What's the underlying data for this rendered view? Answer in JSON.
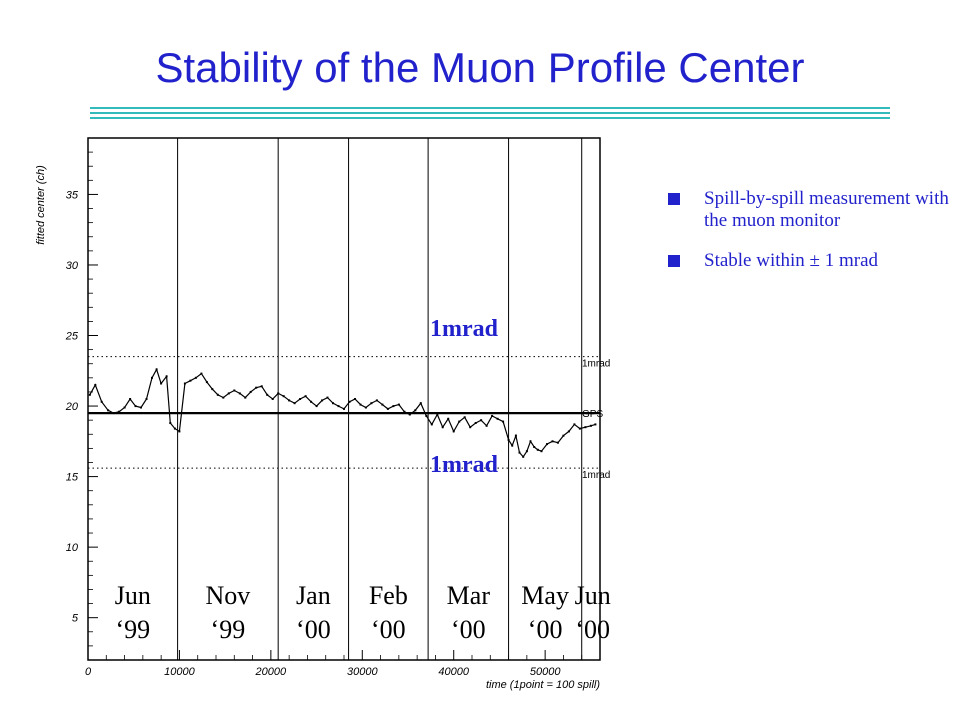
{
  "slide": {
    "title": "Stability of the Muon Profile Center",
    "accent_color": "#2222cc",
    "rule_color": "#33bbbb"
  },
  "bullets": [
    {
      "text": "Spill-by-spill measurement with the muon monitor",
      "icon": "square-bullet-icon"
    },
    {
      "text": "Stable within ± 1 mrad",
      "icon": "square-bullet-icon"
    }
  ],
  "chart_data": {
    "type": "scatter",
    "ylabel": "fitted center (ch)",
    "xlabel": "time (1point = 100 spill)",
    "xlim": [
      0,
      56000
    ],
    "ylim": [
      2,
      39
    ],
    "x_ticks": [
      0,
      10000,
      20000,
      30000,
      40000,
      50000
    ],
    "y_ticks": [
      5,
      10,
      15,
      20,
      25,
      30,
      35
    ],
    "reference_lines": [
      {
        "y": 19.5,
        "label": "GPS",
        "style": "solid"
      },
      {
        "y": 23.5,
        "label": "1mrad",
        "style": "dotted"
      },
      {
        "y": 15.6,
        "label": "1mrad",
        "style": "dotted"
      }
    ],
    "annotations": [
      "1mrad",
      "1mrad"
    ],
    "period_boundaries": [
      9800,
      20800,
      28500,
      37200,
      46000,
      54000
    ],
    "periods": [
      {
        "month": "Jun",
        "year": "‘99",
        "x_start": 0,
        "x_end": 9800
      },
      {
        "month": "Nov",
        "year": "‘99",
        "x_start": 9800,
        "x_end": 20800
      },
      {
        "month": "Jan",
        "year": "‘00",
        "x_start": 20800,
        "x_end": 28500
      },
      {
        "month": "Feb",
        "year": "‘00",
        "x_start": 28500,
        "x_end": 37200
      },
      {
        "month": "Mar",
        "year": "‘00",
        "x_start": 37200,
        "x_end": 46000
      },
      {
        "month": "May",
        "year": "‘00",
        "x_start": 46000,
        "x_end": 54000
      },
      {
        "month": "Jun",
        "year": "‘00",
        "x_start": 54000,
        "x_end": 56000
      }
    ],
    "series": [
      {
        "x": [
          200,
          800,
          1500,
          2200,
          2800,
          3400,
          4000,
          4600,
          5200,
          5800,
          6400,
          7000,
          7500,
          8000,
          8600,
          9000,
          9500,
          10000,
          10600,
          11200,
          11800,
          12400,
          13000,
          13600,
          14200,
          14800,
          15400,
          16000,
          16600,
          17200,
          17800,
          18400,
          19000,
          19600,
          20200,
          20800,
          21400,
          22000,
          22600,
          23200,
          23800,
          24400,
          25000,
          25600,
          26200,
          26800,
          27400,
          28000,
          28600,
          29200,
          29800,
          30400,
          31000,
          31600,
          32200,
          32800,
          33400,
          34000,
          34600,
          35200,
          35800,
          36400,
          37000,
          37600,
          38200,
          38800,
          39400,
          40000,
          40600,
          41200,
          41800,
          42400,
          43000,
          43600,
          44200,
          44800,
          45400,
          46000,
          46400,
          46800,
          47200,
          47600,
          48000,
          48400,
          48800,
          49200,
          49600,
          50200,
          50800,
          51400,
          52000,
          52600,
          53200,
          53800,
          54400,
          55000,
          55500
        ],
        "y": [
          20.8,
          21.5,
          20.3,
          19.7,
          19.5,
          19.6,
          19.9,
          20.5,
          20.0,
          19.9,
          20.5,
          22.0,
          22.6,
          21.6,
          22.1,
          18.8,
          18.4,
          18.2,
          21.6,
          21.8,
          22.0,
          22.3,
          21.7,
          21.2,
          20.8,
          20.6,
          20.9,
          21.1,
          20.9,
          20.6,
          21.0,
          21.3,
          21.4,
          20.8,
          20.5,
          20.9,
          20.7,
          20.4,
          20.2,
          20.5,
          20.7,
          20.3,
          20.0,
          20.4,
          20.6,
          20.2,
          20.0,
          19.8,
          20.3,
          20.5,
          20.1,
          19.9,
          20.2,
          20.4,
          20.1,
          19.8,
          20.0,
          20.1,
          19.6,
          19.4,
          19.7,
          20.2,
          19.3,
          18.7,
          19.4,
          18.5,
          19.1,
          18.2,
          18.9,
          19.2,
          18.5,
          18.8,
          19.0,
          18.6,
          19.3,
          19.1,
          18.9,
          17.6,
          17.2,
          17.9,
          16.7,
          16.4,
          16.8,
          17.5,
          17.1,
          16.9,
          16.8,
          17.3,
          17.5,
          17.4,
          17.9,
          18.2,
          18.7,
          18.4,
          18.5,
          18.6,
          18.7
        ],
        "name": ""
      }
    ]
  }
}
